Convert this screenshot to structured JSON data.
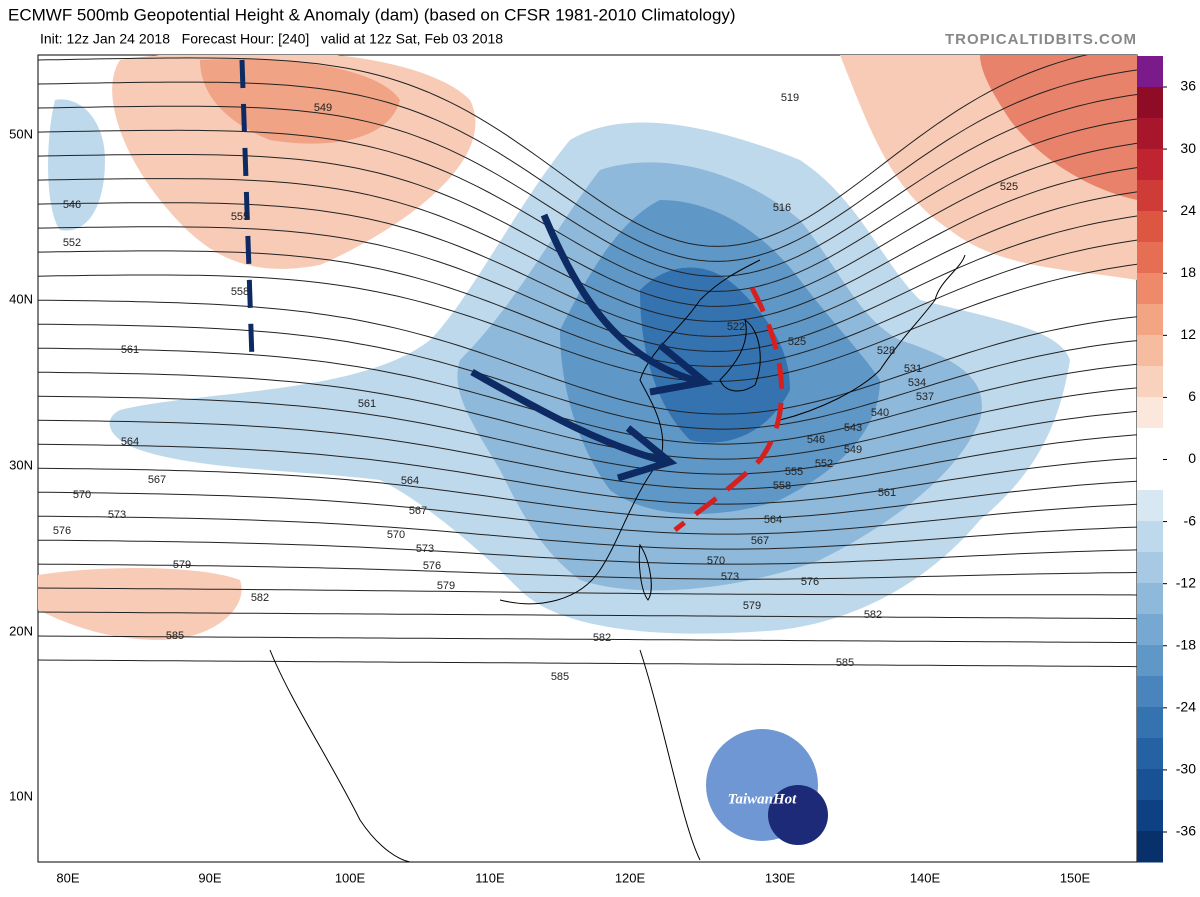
{
  "header": {
    "title": "ECMWF 500mb Geopotential Height & Anomaly (dam) (based on CFSR 1981-2010 Climatology)",
    "init": "Init: 12z Jan 24 2018   Forecast Hour: [240]   valid at 12z Sat, Feb 03 2018",
    "source": "TROPICALTIDBITS.COM"
  },
  "map": {
    "lat_labels": [
      "50N",
      "40N",
      "30N",
      "20N",
      "10N"
    ],
    "lon_labels": [
      "80E",
      "90E",
      "100E",
      "110E",
      "120E",
      "130E",
      "140E",
      "150E"
    ],
    "contour_labels": [
      549,
      546,
      552,
      555,
      558,
      561,
      561,
      564,
      567,
      570,
      573,
      576,
      579,
      582,
      585,
      564,
      567,
      570,
      573,
      576,
      579,
      582,
      585,
      585,
      582,
      579,
      576,
      573,
      570,
      567,
      564,
      561,
      558,
      555,
      552,
      549,
      546,
      543,
      540,
      537,
      534,
      531,
      528,
      525,
      522,
      519,
      516,
      525
    ]
  },
  "colorbar": {
    "ticks": [
      36,
      30,
      24,
      18,
      12,
      6,
      0,
      -6,
      -12,
      -18,
      -24,
      -30,
      -36
    ]
  },
  "logo": {
    "text": "TaiwanHot"
  }
}
